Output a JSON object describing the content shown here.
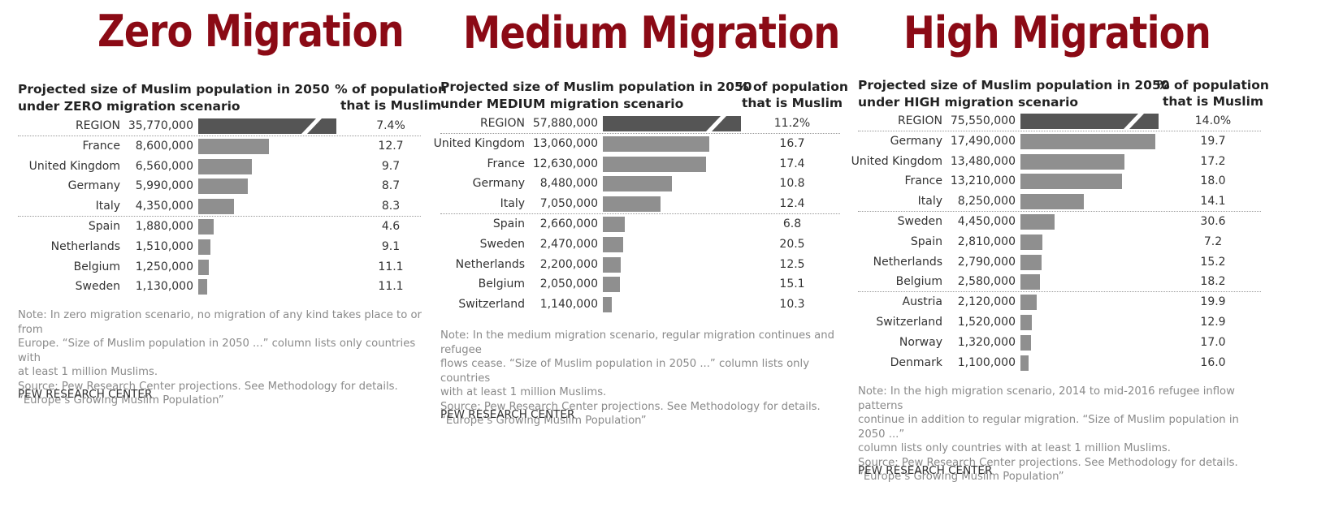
{
  "chart_data": [
    {
      "type": "bar",
      "heading": "Zero Migration",
      "title": "Projected size of Muslim population in 2050 under ZERO migration scenario",
      "title_line1": "Projected size of Muslim population in 2050",
      "title_line2": "under ZERO migration scenario",
      "pct_header_line1": "% of population",
      "pct_header_line2": "that is Muslim",
      "region": {
        "label": "REGION",
        "value": 35770000,
        "value_text": "35,770,000",
        "pct": "7.4%"
      },
      "categories": [
        "France",
        "United Kingdom",
        "Germany",
        "Italy",
        "Spain",
        "Netherlands",
        "Belgium",
        "Sweden"
      ],
      "values": [
        8600000,
        6560000,
        5990000,
        4350000,
        1880000,
        1510000,
        1250000,
        1130000
      ],
      "value_labels": [
        "8,600,000",
        "6,560,000",
        "5,990,000",
        "4,350,000",
        "1,880,000",
        "1,510,000",
        "1,250,000",
        "1,130,000"
      ],
      "pct_labels": [
        "12.7",
        "9.7",
        "8.7",
        "8.3",
        "4.6",
        "9.1",
        "11.1",
        "11.1"
      ],
      "group_break_after": 3,
      "note_lines": [
        "Note: In zero migration scenario, no migration of any kind takes place to or from",
        "Europe. “Size of Muslim population in 2050 ...” column lists only countries with",
        "at least 1 million Muslims.",
        "Source: Pew Research Center projections. See Methodology for details.",
        "“Europe’s Growing Muslim Population”"
      ],
      "credit": "PEW RESEARCH CENTER"
    },
    {
      "type": "bar",
      "heading": "Medium Migration",
      "title": "Projected size of Muslim population in 2050 under MEDIUM migration scenario",
      "title_line1": "Projected size of Muslim population in 2050",
      "title_line2": "under MEDIUM migration scenario",
      "pct_header_line1": "% of population",
      "pct_header_line2": "that is Muslim",
      "region": {
        "label": "REGION",
        "value": 57880000,
        "value_text": "57,880,000",
        "pct": "11.2%"
      },
      "categories": [
        "United Kingdom",
        "France",
        "Germany",
        "Italy",
        "Spain",
        "Sweden",
        "Netherlands",
        "Belgium",
        "Switzerland"
      ],
      "values": [
        13060000,
        12630000,
        8480000,
        7050000,
        2660000,
        2470000,
        2200000,
        2050000,
        1140000
      ],
      "value_labels": [
        "13,060,000",
        "12,630,000",
        "8,480,000",
        "7,050,000",
        "2,660,000",
        "2,470,000",
        "2,200,000",
        "2,050,000",
        "1,140,000"
      ],
      "pct_labels": [
        "16.7",
        "17.4",
        "10.8",
        "12.4",
        "6.8",
        "20.5",
        "12.5",
        "15.1",
        "10.3"
      ],
      "group_break_after": 3,
      "note_lines": [
        "Note: In the medium migration scenario, regular migration continues and refugee",
        "flows cease. “Size of Muslim population in 2050 ...” column lists only countries",
        "with at least 1 million Muslims.",
        "Source: Pew Research Center projections. See Methodology for details.",
        "“Europe’s Growing Muslim Population”"
      ],
      "credit": "PEW RESEARCH CENTER"
    },
    {
      "type": "bar",
      "heading": "High Migration",
      "title": "Projected size of Muslim population in 2050 under HIGH migration scenario",
      "title_line1": "Projected size of Muslim population in 2050",
      "title_line2": "under HIGH migration scenario",
      "pct_header_line1": "% of population",
      "pct_header_line2": "that is Muslim",
      "region": {
        "label": "REGION",
        "value": 75550000,
        "value_text": "75,550,000",
        "pct": "14.0%"
      },
      "categories": [
        "Germany",
        "United Kingdom",
        "France",
        "Italy",
        "Sweden",
        "Spain",
        "Netherlands",
        "Belgium",
        "Austria",
        "Switzerland",
        "Norway",
        "Denmark"
      ],
      "values": [
        17490000,
        13480000,
        13210000,
        8250000,
        4450000,
        2810000,
        2790000,
        2580000,
        2120000,
        1520000,
        1320000,
        1100000
      ],
      "value_labels": [
        "17,490,000",
        "13,480,000",
        "13,210,000",
        "8,250,000",
        "4,450,000",
        "2,810,000",
        "2,790,000",
        "2,580,000",
        "2,120,000",
        "1,520,000",
        "1,320,000",
        "1,100,000"
      ],
      "pct_labels": [
        "19.7",
        "17.2",
        "18.0",
        "14.1",
        "30.6",
        "7.2",
        "15.2",
        "18.2",
        "19.9",
        "12.9",
        "17.0",
        "16.0"
      ],
      "group_break_after": [
        3,
        7
      ],
      "note_lines": [
        "Note: In the high migration scenario, 2014 to mid-2016 refugee inflow patterns",
        "continue in addition to regular migration. “Size of Muslim population in 2050 ...”",
        "column lists only countries with at least 1 million Muslims.",
        "Source: Pew Research Center projections. See Methodology for details.",
        "“Europe’s Growing Muslim Population”"
      ],
      "credit": "PEW RESEARCH CENTER"
    }
  ],
  "colors": {
    "heading": "#8b0a15",
    "bar": "#8f8f8f",
    "region_bar": "#555555",
    "note": "#8a8a8a"
  }
}
